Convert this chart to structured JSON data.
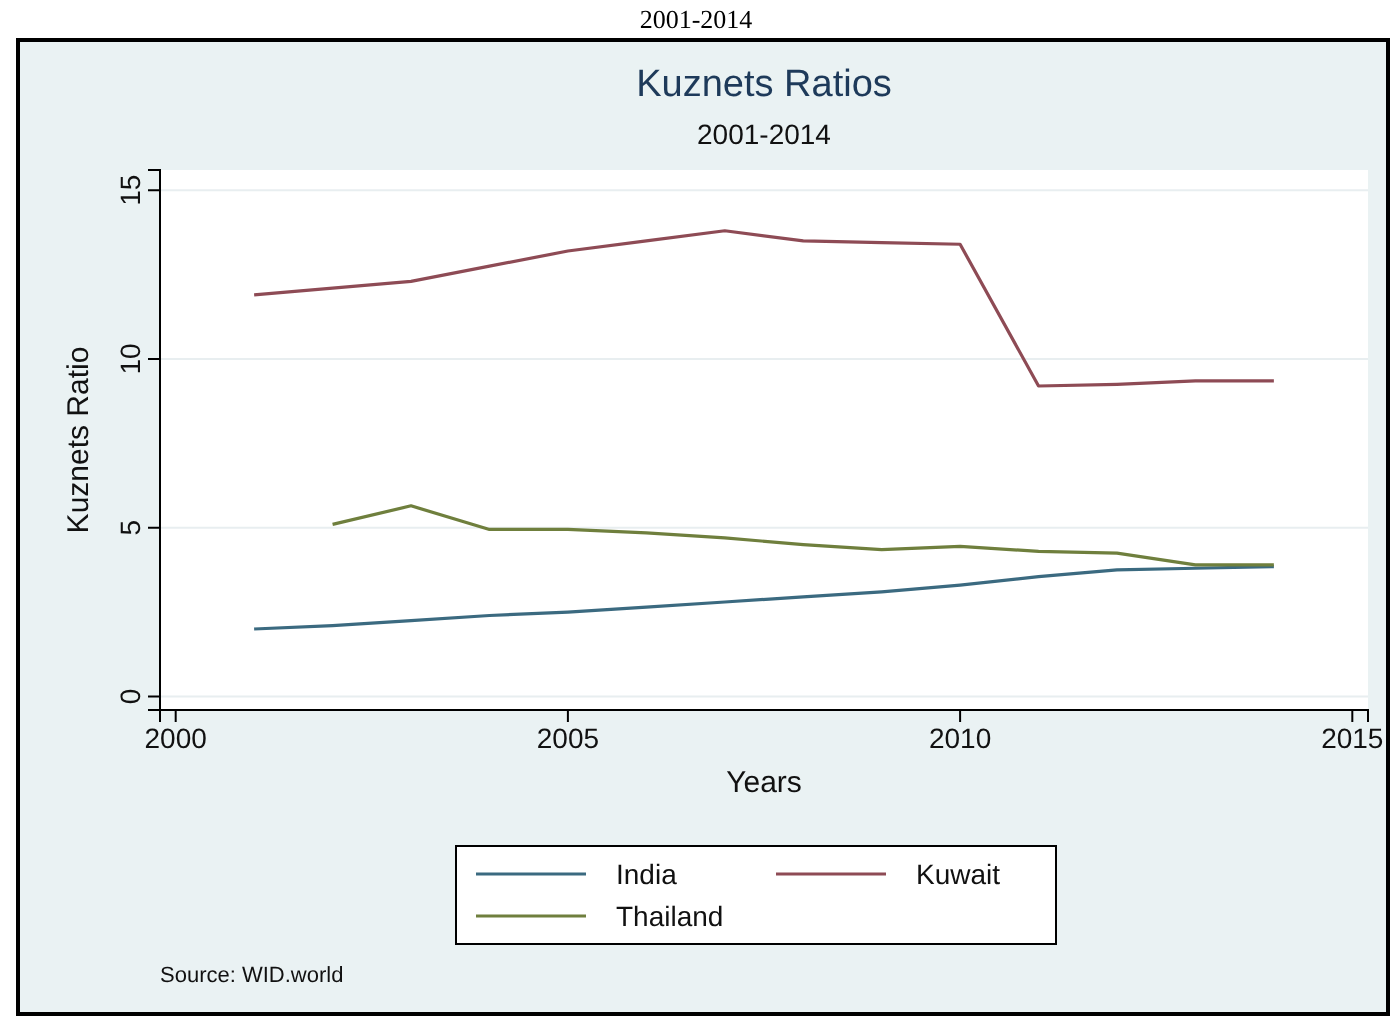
{
  "chart_data": {
    "type": "line",
    "title": "Kuznets Ratios",
    "subtitle": "2001-2014",
    "xlabel": "Years",
    "ylabel": "Kuznets Ratio",
    "x": [
      2001,
      2002,
      2003,
      2004,
      2005,
      2006,
      2007,
      2008,
      2009,
      2010,
      2011,
      2012,
      2013,
      2014
    ],
    "series": [
      {
        "name": "India",
        "color": "#3b6a80",
        "values": [
          2.0,
          2.1,
          2.25,
          2.4,
          2.5,
          2.65,
          2.8,
          2.95,
          3.1,
          3.3,
          3.55,
          3.75,
          3.8,
          3.85
        ]
      },
      {
        "name": "Kuwait",
        "color": "#8e4b55",
        "values": [
          11.9,
          12.1,
          12.3,
          12.75,
          13.2,
          13.5,
          13.8,
          13.5,
          13.45,
          13.4,
          9.2,
          9.25,
          9.35,
          9.35
        ]
      },
      {
        "name": "Thailand",
        "color": "#6f7f3d",
        "values": [
          null,
          5.1,
          5.65,
          4.95,
          4.95,
          4.85,
          4.7,
          4.5,
          4.35,
          4.45,
          4.3,
          4.25,
          3.9,
          3.9
        ]
      }
    ],
    "xlim": [
      1999.8,
      2015.2
    ],
    "xticks": [
      2000,
      2005,
      2010,
      2015
    ],
    "ylim": [
      -0.4,
      15.6
    ],
    "yticks": [
      0,
      5,
      10,
      15
    ],
    "grid": "y",
    "legend": "bottom",
    "marker": "none",
    "line_style": "solid",
    "annotations": [
      "Source: WID.world",
      "2001-2014"
    ]
  }
}
